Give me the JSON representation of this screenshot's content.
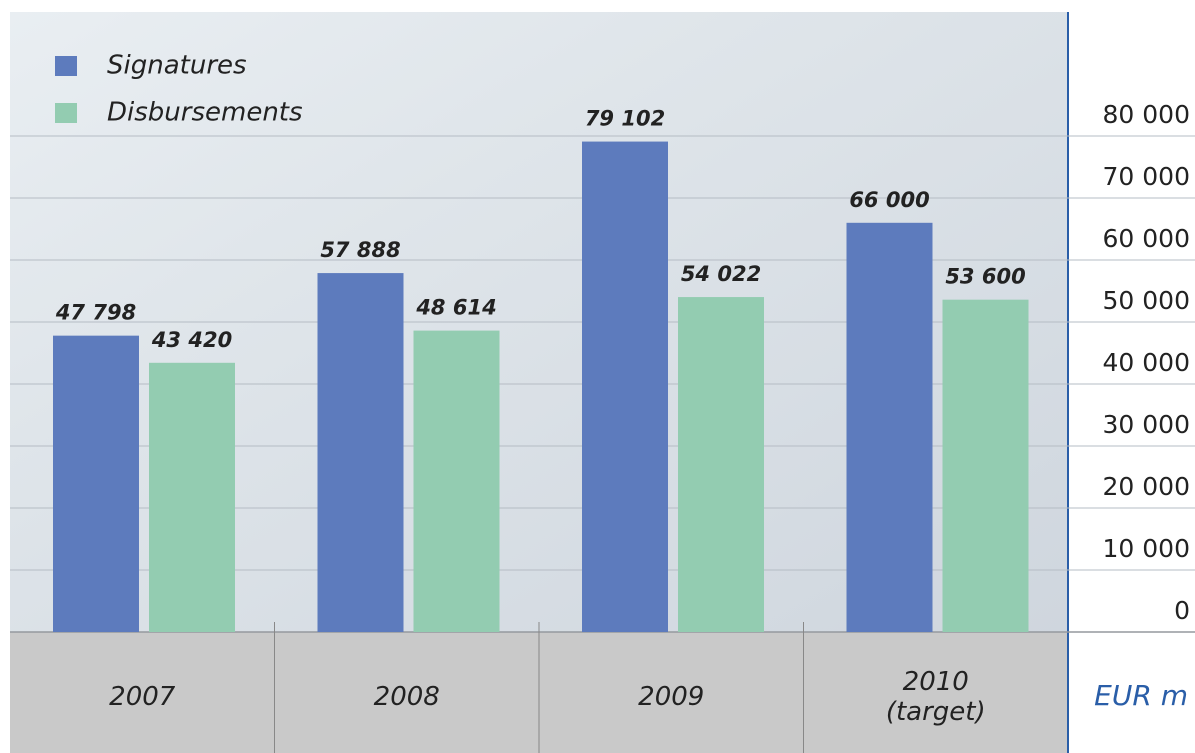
{
  "chart_data": {
    "type": "bar",
    "categories": [
      "2007",
      "2008",
      "2009",
      "2010 (target)"
    ],
    "series": [
      {
        "name": "Signatures",
        "color": "#5d7bbd",
        "values": [
          47798,
          57888,
          79102,
          66000
        ],
        "value_labels": [
          "47 798",
          "57 888",
          "79 102",
          "66 000"
        ]
      },
      {
        "name": "Disbursements",
        "color": "#93ccb1",
        "values": [
          43420,
          48614,
          54022,
          53600
        ],
        "value_labels": [
          "43 420",
          "48 614",
          "54 022",
          "53 600"
        ]
      }
    ],
    "y_label": "EUR m",
    "ylim": [
      0,
      100000
    ],
    "yticks": [
      0,
      {
        "value": 10000,
        "label": "10 000"
      },
      {
        "value": 20000,
        "label": "20 000"
      },
      {
        "value": 30000,
        "label": "30 000"
      },
      {
        "value": 40000,
        "label": "40 000"
      },
      {
        "value": 50000,
        "label": "50 000"
      },
      {
        "value": 60000,
        "label": "60 000"
      },
      {
        "value": 70000,
        "label": "70 000"
      },
      {
        "value": 80000,
        "label": "80 000"
      }
    ],
    "grid": true,
    "legend": "top-left"
  }
}
